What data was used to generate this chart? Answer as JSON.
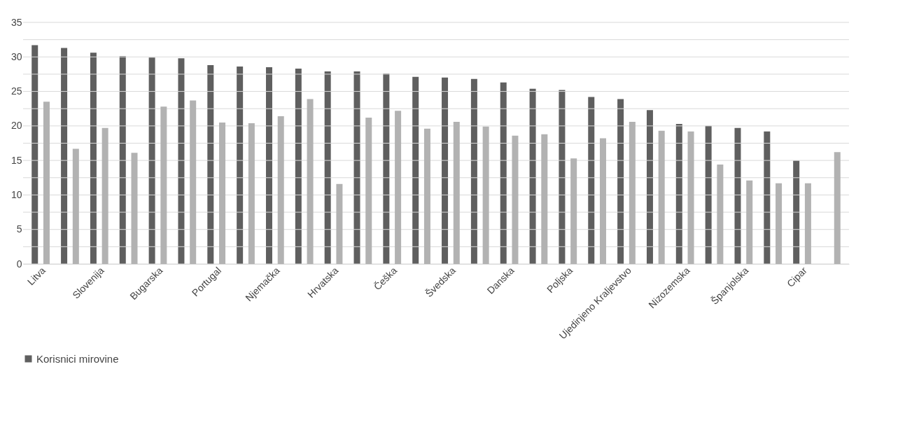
{
  "chart_data": {
    "type": "bar",
    "categories": [
      "Litva",
      null,
      "Slovenija",
      null,
      "Bugarska",
      null,
      "Portugal",
      null,
      "Njemačka",
      null,
      "Hrvatska",
      null,
      "Češka",
      null,
      "Švedska",
      null,
      "Danska",
      null,
      "Poljska",
      null,
      "Ujedinjeno Kraljevstvo",
      null,
      "Nizozemska",
      null,
      "Španjolska",
      null,
      "Cipar",
      null
    ],
    "series": [
      {
        "name": "Korisnici mirovine",
        "color": "#5f5f5f",
        "values": [
          31.7,
          31.3,
          30.6,
          30.1,
          29.9,
          29.8,
          28.8,
          28.6,
          28.5,
          28.3,
          27.9,
          27.9,
          27.6,
          27.1,
          27.0,
          26.8,
          26.3,
          25.4,
          25.2,
          24.2,
          23.9,
          22.3,
          20.3,
          20.0,
          19.7,
          19.2,
          15.0,
          null
        ]
      },
      {
        "color": "#b2b2b2",
        "values": [
          23.5,
          16.7,
          19.7,
          16.1,
          22.8,
          23.7,
          20.5,
          20.4,
          21.4,
          23.9,
          11.6,
          21.2,
          22.2,
          19.6,
          20.6,
          19.9,
          18.6,
          18.8,
          15.3,
          18.2,
          20.6,
          19.3,
          19.2,
          14.4,
          12.1,
          11.7,
          11.7,
          16.2
        ]
      }
    ],
    "ylim": [
      0,
      35
    ],
    "yticks": [
      0,
      {
        "value": 2.5,
        "label": null
      },
      5,
      {
        "value": 7.5,
        "label": null
      },
      10,
      {
        "value": 12.5,
        "label": null
      },
      15,
      {
        "value": 17.5,
        "label": null
      },
      20,
      {
        "value": 22.5,
        "label": null
      },
      25,
      {
        "value": 27.5,
        "label": null
      },
      30,
      {
        "value": 32.5,
        "label": null
      },
      35
    ],
    "grid": "y",
    "legend": "bottom"
  }
}
